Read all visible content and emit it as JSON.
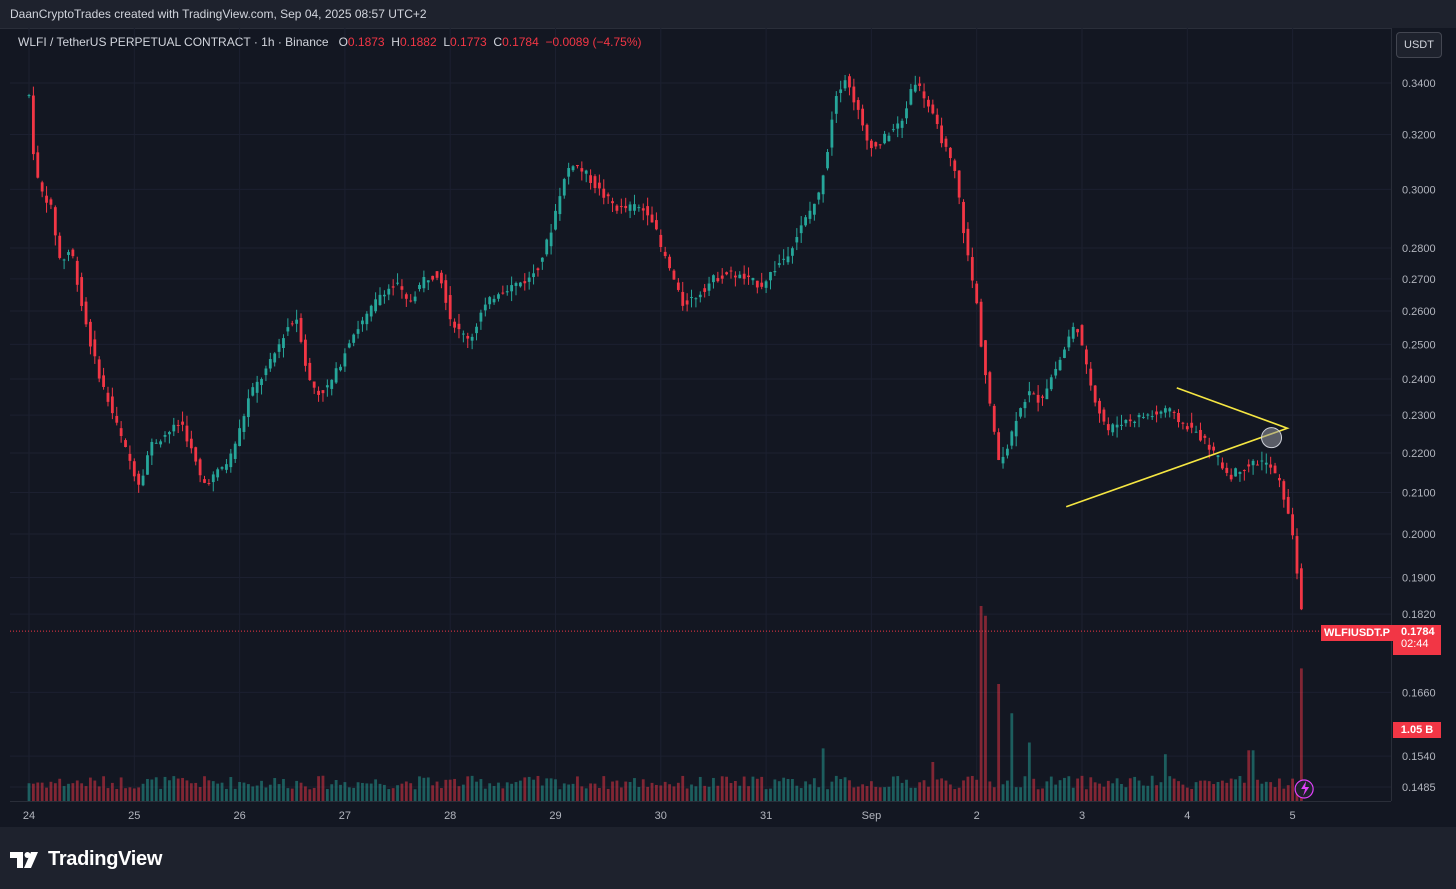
{
  "header": {
    "credit": "DaanCryptoTrades created with TradingView.com, Sep 04, 2025 08:57 UTC+2"
  },
  "legend": {
    "symbol": "WLFI / TetherUS PERPETUAL CONTRACT · 1h · Binance",
    "o_label": "O",
    "o_value": "0.1873",
    "h_label": "H",
    "h_value": "0.1882",
    "l_label": "L",
    "l_value": "0.1773",
    "c_label": "C",
    "c_value": "0.1784",
    "change": "−0.0089 (−4.75%)"
  },
  "scale": {
    "unit": "USDT"
  },
  "tags": {
    "symbol": "WLFIUSDT.P",
    "price": "0.1784",
    "countdown": "02:44",
    "volume": "1.05 B"
  },
  "footer": {
    "logo_text": "TradingView"
  },
  "colors": {
    "up": "#26a69a",
    "down": "#f23645",
    "pattern": "#f5e642",
    "background": "#131722"
  },
  "chart_data": {
    "type": "candlestick",
    "symbol": "WLFIUSDT.P",
    "interval": "1h",
    "y_scale": "log",
    "y_ticks": [
      0.34,
      0.32,
      0.3,
      0.28,
      0.27,
      0.26,
      0.25,
      0.24,
      0.23,
      0.22,
      0.21,
      0.2,
      0.19,
      0.182,
      0.166,
      0.154,
      0.1485
    ],
    "y_range": [
      0.147,
      0.35
    ],
    "x_ticks": [
      "24",
      "25",
      "26",
      "27",
      "28",
      "29",
      "30",
      "31",
      "Sep",
      "2",
      "3",
      "4",
      "5"
    ],
    "x_range_days": [
      0,
      12.5
    ],
    "last_price": 0.1784,
    "price_path": [
      [
        0.0,
        0.335
      ],
      [
        0.05,
        0.31
      ],
      [
        0.1,
        0.3
      ],
      [
        0.2,
        0.295
      ],
      [
        0.3,
        0.275
      ],
      [
        0.4,
        0.28
      ],
      [
        0.5,
        0.262
      ],
      [
        0.6,
        0.248
      ],
      [
        0.7,
        0.238
      ],
      [
        0.8,
        0.23
      ],
      [
        0.9,
        0.222
      ],
      [
        1.0,
        0.215
      ],
      [
        1.05,
        0.212
      ],
      [
        1.15,
        0.222
      ],
      [
        1.3,
        0.225
      ],
      [
        1.45,
        0.228
      ],
      [
        1.55,
        0.22
      ],
      [
        1.65,
        0.212
      ],
      [
        1.75,
        0.214
      ],
      [
        1.9,
        0.218
      ],
      [
        2.0,
        0.226
      ],
      [
        2.1,
        0.236
      ],
      [
        2.2,
        0.24
      ],
      [
        2.3,
        0.245
      ],
      [
        2.45,
        0.255
      ],
      [
        2.55,
        0.258
      ],
      [
        2.65,
        0.24
      ],
      [
        2.75,
        0.236
      ],
      [
        2.85,
        0.238
      ],
      [
        2.95,
        0.244
      ],
      [
        3.05,
        0.252
      ],
      [
        3.2,
        0.258
      ],
      [
        3.35,
        0.266
      ],
      [
        3.5,
        0.268
      ],
      [
        3.6,
        0.262
      ],
      [
        3.75,
        0.27
      ],
      [
        3.9,
        0.272
      ],
      [
        4.0,
        0.258
      ],
      [
        4.1,
        0.253
      ],
      [
        4.2,
        0.252
      ],
      [
        4.3,
        0.26
      ],
      [
        4.45,
        0.266
      ],
      [
        4.6,
        0.268
      ],
      [
        4.75,
        0.27
      ],
      [
        4.85,
        0.275
      ],
      [
        4.95,
        0.285
      ],
      [
        5.05,
        0.3
      ],
      [
        5.15,
        0.31
      ],
      [
        5.3,
        0.305
      ],
      [
        5.45,
        0.298
      ],
      [
        5.6,
        0.293
      ],
      [
        5.75,
        0.294
      ],
      [
        5.9,
        0.292
      ],
      [
        6.0,
        0.28
      ],
      [
        6.1,
        0.272
      ],
      [
        6.2,
        0.262
      ],
      [
        6.35,
        0.265
      ],
      [
        6.5,
        0.27
      ],
      [
        6.65,
        0.272
      ],
      [
        6.8,
        0.27
      ],
      [
        6.95,
        0.268
      ],
      [
        7.05,
        0.272
      ],
      [
        7.2,
        0.278
      ],
      [
        7.35,
        0.288
      ],
      [
        7.5,
        0.298
      ],
      [
        7.6,
        0.318
      ],
      [
        7.65,
        0.335
      ],
      [
        7.75,
        0.342
      ],
      [
        7.85,
        0.332
      ],
      [
        7.95,
        0.318
      ],
      [
        8.05,
        0.315
      ],
      [
        8.15,
        0.32
      ],
      [
        8.3,
        0.325
      ],
      [
        8.4,
        0.342
      ],
      [
        8.5,
        0.335
      ],
      [
        8.6,
        0.325
      ],
      [
        8.7,
        0.315
      ],
      [
        8.8,
        0.305
      ],
      [
        8.9,
        0.28
      ],
      [
        9.0,
        0.262
      ],
      [
        9.05,
        0.248
      ],
      [
        9.1,
        0.238
      ],
      [
        9.15,
        0.228
      ],
      [
        9.2,
        0.218
      ],
      [
        9.3,
        0.222
      ],
      [
        9.4,
        0.232
      ],
      [
        9.5,
        0.236
      ],
      [
        9.6,
        0.234
      ],
      [
        9.7,
        0.24
      ],
      [
        9.8,
        0.246
      ],
      [
        9.9,
        0.254
      ],
      [
        9.95,
        0.256
      ],
      [
        10.05,
        0.242
      ],
      [
        10.15,
        0.232
      ],
      [
        10.25,
        0.226
      ],
      [
        10.35,
        0.228
      ],
      [
        10.5,
        0.229
      ],
      [
        10.6,
        0.23
      ],
      [
        10.7,
        0.23
      ],
      [
        10.8,
        0.232
      ],
      [
        10.9,
        0.229
      ],
      [
        11.0,
        0.227
      ],
      [
        11.1,
        0.225
      ],
      [
        11.2,
        0.222
      ],
      [
        11.3,
        0.218
      ],
      [
        11.4,
        0.214
      ],
      [
        11.5,
        0.216
      ],
      [
        11.6,
        0.217
      ],
      [
        11.7,
        0.218
      ],
      [
        11.8,
        0.216
      ],
      [
        11.9,
        0.211
      ],
      [
        11.95,
        0.205
      ],
      [
        12.0,
        0.2
      ],
      [
        12.05,
        0.19
      ],
      [
        12.1,
        0.1784
      ]
    ],
    "volume_spikes": [
      {
        "day": 7.55,
        "rel": 0.27
      },
      {
        "day": 8.6,
        "rel": 0.2
      },
      {
        "day": 9.05,
        "rel": 1.0
      },
      {
        "day": 9.1,
        "rel": 0.95
      },
      {
        "day": 9.2,
        "rel": 0.6
      },
      {
        "day": 9.35,
        "rel": 0.45
      },
      {
        "day": 9.5,
        "rel": 0.3
      },
      {
        "day": 10.8,
        "rel": 0.24
      },
      {
        "day": 11.6,
        "rel": 0.26
      },
      {
        "day": 12.1,
        "rel": 0.68
      },
      {
        "day": 12.15,
        "rel": 0.36
      }
    ],
    "pattern": {
      "type": "triangle",
      "points": [
        [
          9.85,
          0.2065
        ],
        [
          10.9,
          0.2375
        ],
        [
          11.95,
          0.2265
        ]
      ],
      "breakout_marker": [
        11.8,
        0.224
      ]
    }
  }
}
